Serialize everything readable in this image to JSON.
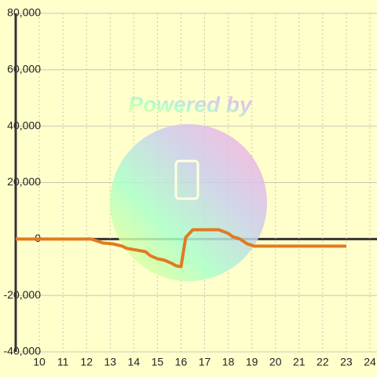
{
  "chart_data": {
    "type": "line",
    "watermark": "Powered by",
    "x": [
      9.0,
      12.2,
      12.7,
      13.1,
      13.5,
      13.7,
      14.1,
      14.5,
      14.7,
      15.0,
      15.3,
      15.6,
      15.8,
      16.0,
      16.2,
      16.5,
      17.6,
      18.0,
      18.2,
      18.5,
      18.8,
      19.1,
      23.0
    ],
    "series": [
      {
        "color": "#e07b20",
        "values": [
          0,
          0,
          -1400,
          -1700,
          -2500,
          -3300,
          -3900,
          -4500,
          -5900,
          -7000,
          -7500,
          -8600,
          -9500,
          -9800,
          560,
          3300,
          3300,
          2000,
          800,
          0,
          -1700,
          -2500,
          -2500
        ]
      }
    ],
    "xlim": [
      9.0,
      24.3
    ],
    "xticks": [
      10,
      11,
      12,
      13,
      14,
      15,
      16,
      17,
      18,
      19,
      20,
      21,
      22,
      23,
      24
    ],
    "ylim": [
      -40000,
      80000
    ],
    "yticks": [
      {
        "value": -40000,
        "label": "-40,000"
      },
      {
        "value": -20000,
        "label": "-20,000"
      },
      0,
      {
        "value": 20000,
        "label": "20,000"
      },
      {
        "value": 40000,
        "label": "40,000"
      },
      {
        "value": 60000,
        "label": "60,000"
      },
      {
        "value": 80000,
        "label": "80,000"
      }
    ],
    "grid": true
  }
}
